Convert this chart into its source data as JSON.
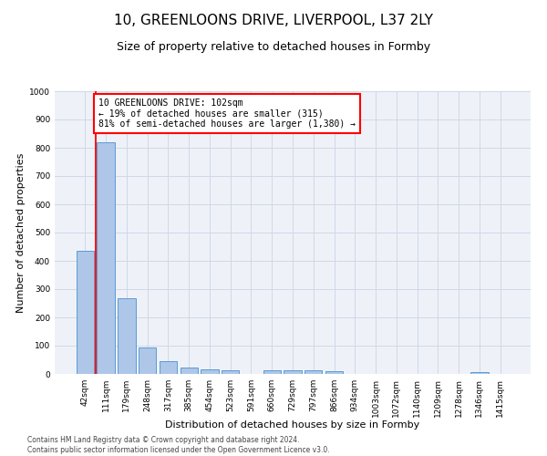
{
  "title1": "10, GREENLOONS DRIVE, LIVERPOOL, L37 2LY",
  "title2": "Size of property relative to detached houses in Formby",
  "xlabel": "Distribution of detached houses by size in Formby",
  "ylabel": "Number of detached properties",
  "bar_labels": [
    "42sqm",
    "111sqm",
    "179sqm",
    "248sqm",
    "317sqm",
    "385sqm",
    "454sqm",
    "523sqm",
    "591sqm",
    "660sqm",
    "729sqm",
    "797sqm",
    "866sqm",
    "934sqm",
    "1003sqm",
    "1072sqm",
    "1140sqm",
    "1209sqm",
    "1278sqm",
    "1346sqm",
    "1415sqm"
  ],
  "bar_values": [
    435,
    820,
    268,
    93,
    45,
    22,
    16,
    12,
    0,
    12,
    12,
    12,
    10,
    0,
    0,
    0,
    0,
    0,
    0,
    8,
    0
  ],
  "bar_color": "#aec6e8",
  "bar_edge_color": "#5b9bd5",
  "vline_x": 0.5,
  "vline_color": "red",
  "annotation_text": "10 GREENLOONS DRIVE: 102sqm\n← 19% of detached houses are smaller (315)\n81% of semi-detached houses are larger (1,380) →",
  "annotation_box_color": "white",
  "annotation_box_edge_color": "red",
  "ylim": [
    0,
    1000
  ],
  "yticks": [
    0,
    100,
    200,
    300,
    400,
    500,
    600,
    700,
    800,
    900,
    1000
  ],
  "grid_color": "#d0d8e8",
  "bg_color": "#eef2f8",
  "footer": "Contains HM Land Registry data © Crown copyright and database right 2024.\nContains public sector information licensed under the Open Government Licence v3.0.",
  "title1_fontsize": 11,
  "title2_fontsize": 9,
  "xlabel_fontsize": 8,
  "ylabel_fontsize": 8,
  "tick_fontsize": 6.5,
  "annotation_fontsize": 7,
  "footer_fontsize": 5.5
}
